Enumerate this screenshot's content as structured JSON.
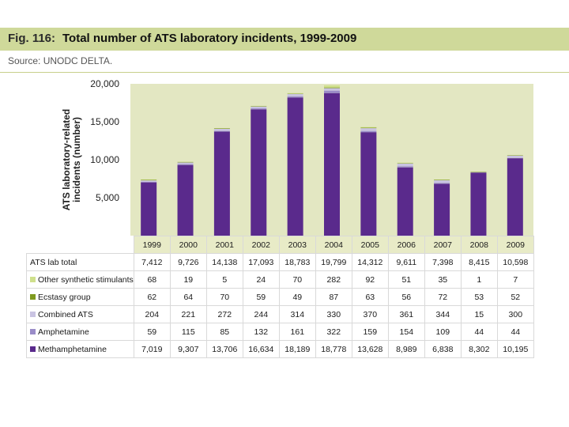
{
  "header": {
    "fig_no": "Fig. 116:",
    "title": "Total number of ATS laboratory incidents, 1999-2009",
    "source": "Source: UNODC DELTA."
  },
  "colors": {
    "title_bar": "#cfd99a",
    "plot_bg": "#e3e7c2",
    "Methamphetamine": "#5a2a8c",
    "Amphetamine": "#9a8cc8",
    "Combined ATS": "#c9c3e2",
    "Ecstasy group": "#7f9a1f",
    "Other synthetic stimulants": "#cfe08c"
  },
  "chart_data": {
    "type": "bar",
    "stacked": true,
    "ylabel": "ATS laboratory-related incidents (number)",
    "ylim": [
      0,
      20000
    ],
    "yticks": [
      "-",
      "5,000",
      "10,000",
      "15,000",
      "20,000"
    ],
    "categories": [
      "1999",
      "2000",
      "2001",
      "2002",
      "2003",
      "2004",
      "2005",
      "2006",
      "2007",
      "2008",
      "2009"
    ],
    "total": {
      "name": "ATS lab total",
      "values": [
        "7,412",
        "9,726",
        "14,138",
        "17,093",
        "18,783",
        "19,799",
        "14,312",
        "9,611",
        "7,398",
        "8,415",
        "10,598"
      ]
    },
    "series": [
      {
        "name": "Methamphetamine",
        "values": [
          7019,
          9307,
          13706,
          16634,
          18189,
          18778,
          13628,
          8989,
          6838,
          8302,
          10195
        ],
        "labels": [
          "7,019",
          "9,307",
          "13,706",
          "16,634",
          "18,189",
          "18,778",
          "13,628",
          "8,989",
          "6,838",
          "8,302",
          "10,195"
        ]
      },
      {
        "name": "Amphetamine",
        "values": [
          59,
          115,
          85,
          132,
          161,
          322,
          159,
          154,
          109,
          44,
          44
        ],
        "labels": [
          "59",
          "115",
          "85",
          "132",
          "161",
          "322",
          "159",
          "154",
          "109",
          "44",
          "44"
        ]
      },
      {
        "name": "Combined ATS",
        "values": [
          204,
          221,
          272,
          244,
          314,
          330,
          370,
          361,
          344,
          15,
          300
        ],
        "labels": [
          "204",
          "221",
          "272",
          "244",
          "314",
          "330",
          "370",
          "361",
          "344",
          "15",
          "300"
        ]
      },
      {
        "name": "Ecstasy group",
        "values": [
          62,
          64,
          70,
          59,
          49,
          87,
          63,
          56,
          72,
          53,
          52
        ],
        "labels": [
          "62",
          "64",
          "70",
          "59",
          "49",
          "87",
          "63",
          "56",
          "72",
          "53",
          "52"
        ]
      },
      {
        "name": "Other synthetic stimulants",
        "values": [
          68,
          19,
          5,
          24,
          70,
          282,
          92,
          51,
          35,
          1,
          7
        ],
        "labels": [
          "68",
          "19",
          "5",
          "24",
          "70",
          "282",
          "92",
          "51",
          "35",
          "1",
          "7"
        ]
      }
    ],
    "table_row_order": [
      "total",
      "Other synthetic stimulants",
      "Ecstasy group",
      "Combined ATS",
      "Amphetamine",
      "Methamphetamine"
    ]
  }
}
